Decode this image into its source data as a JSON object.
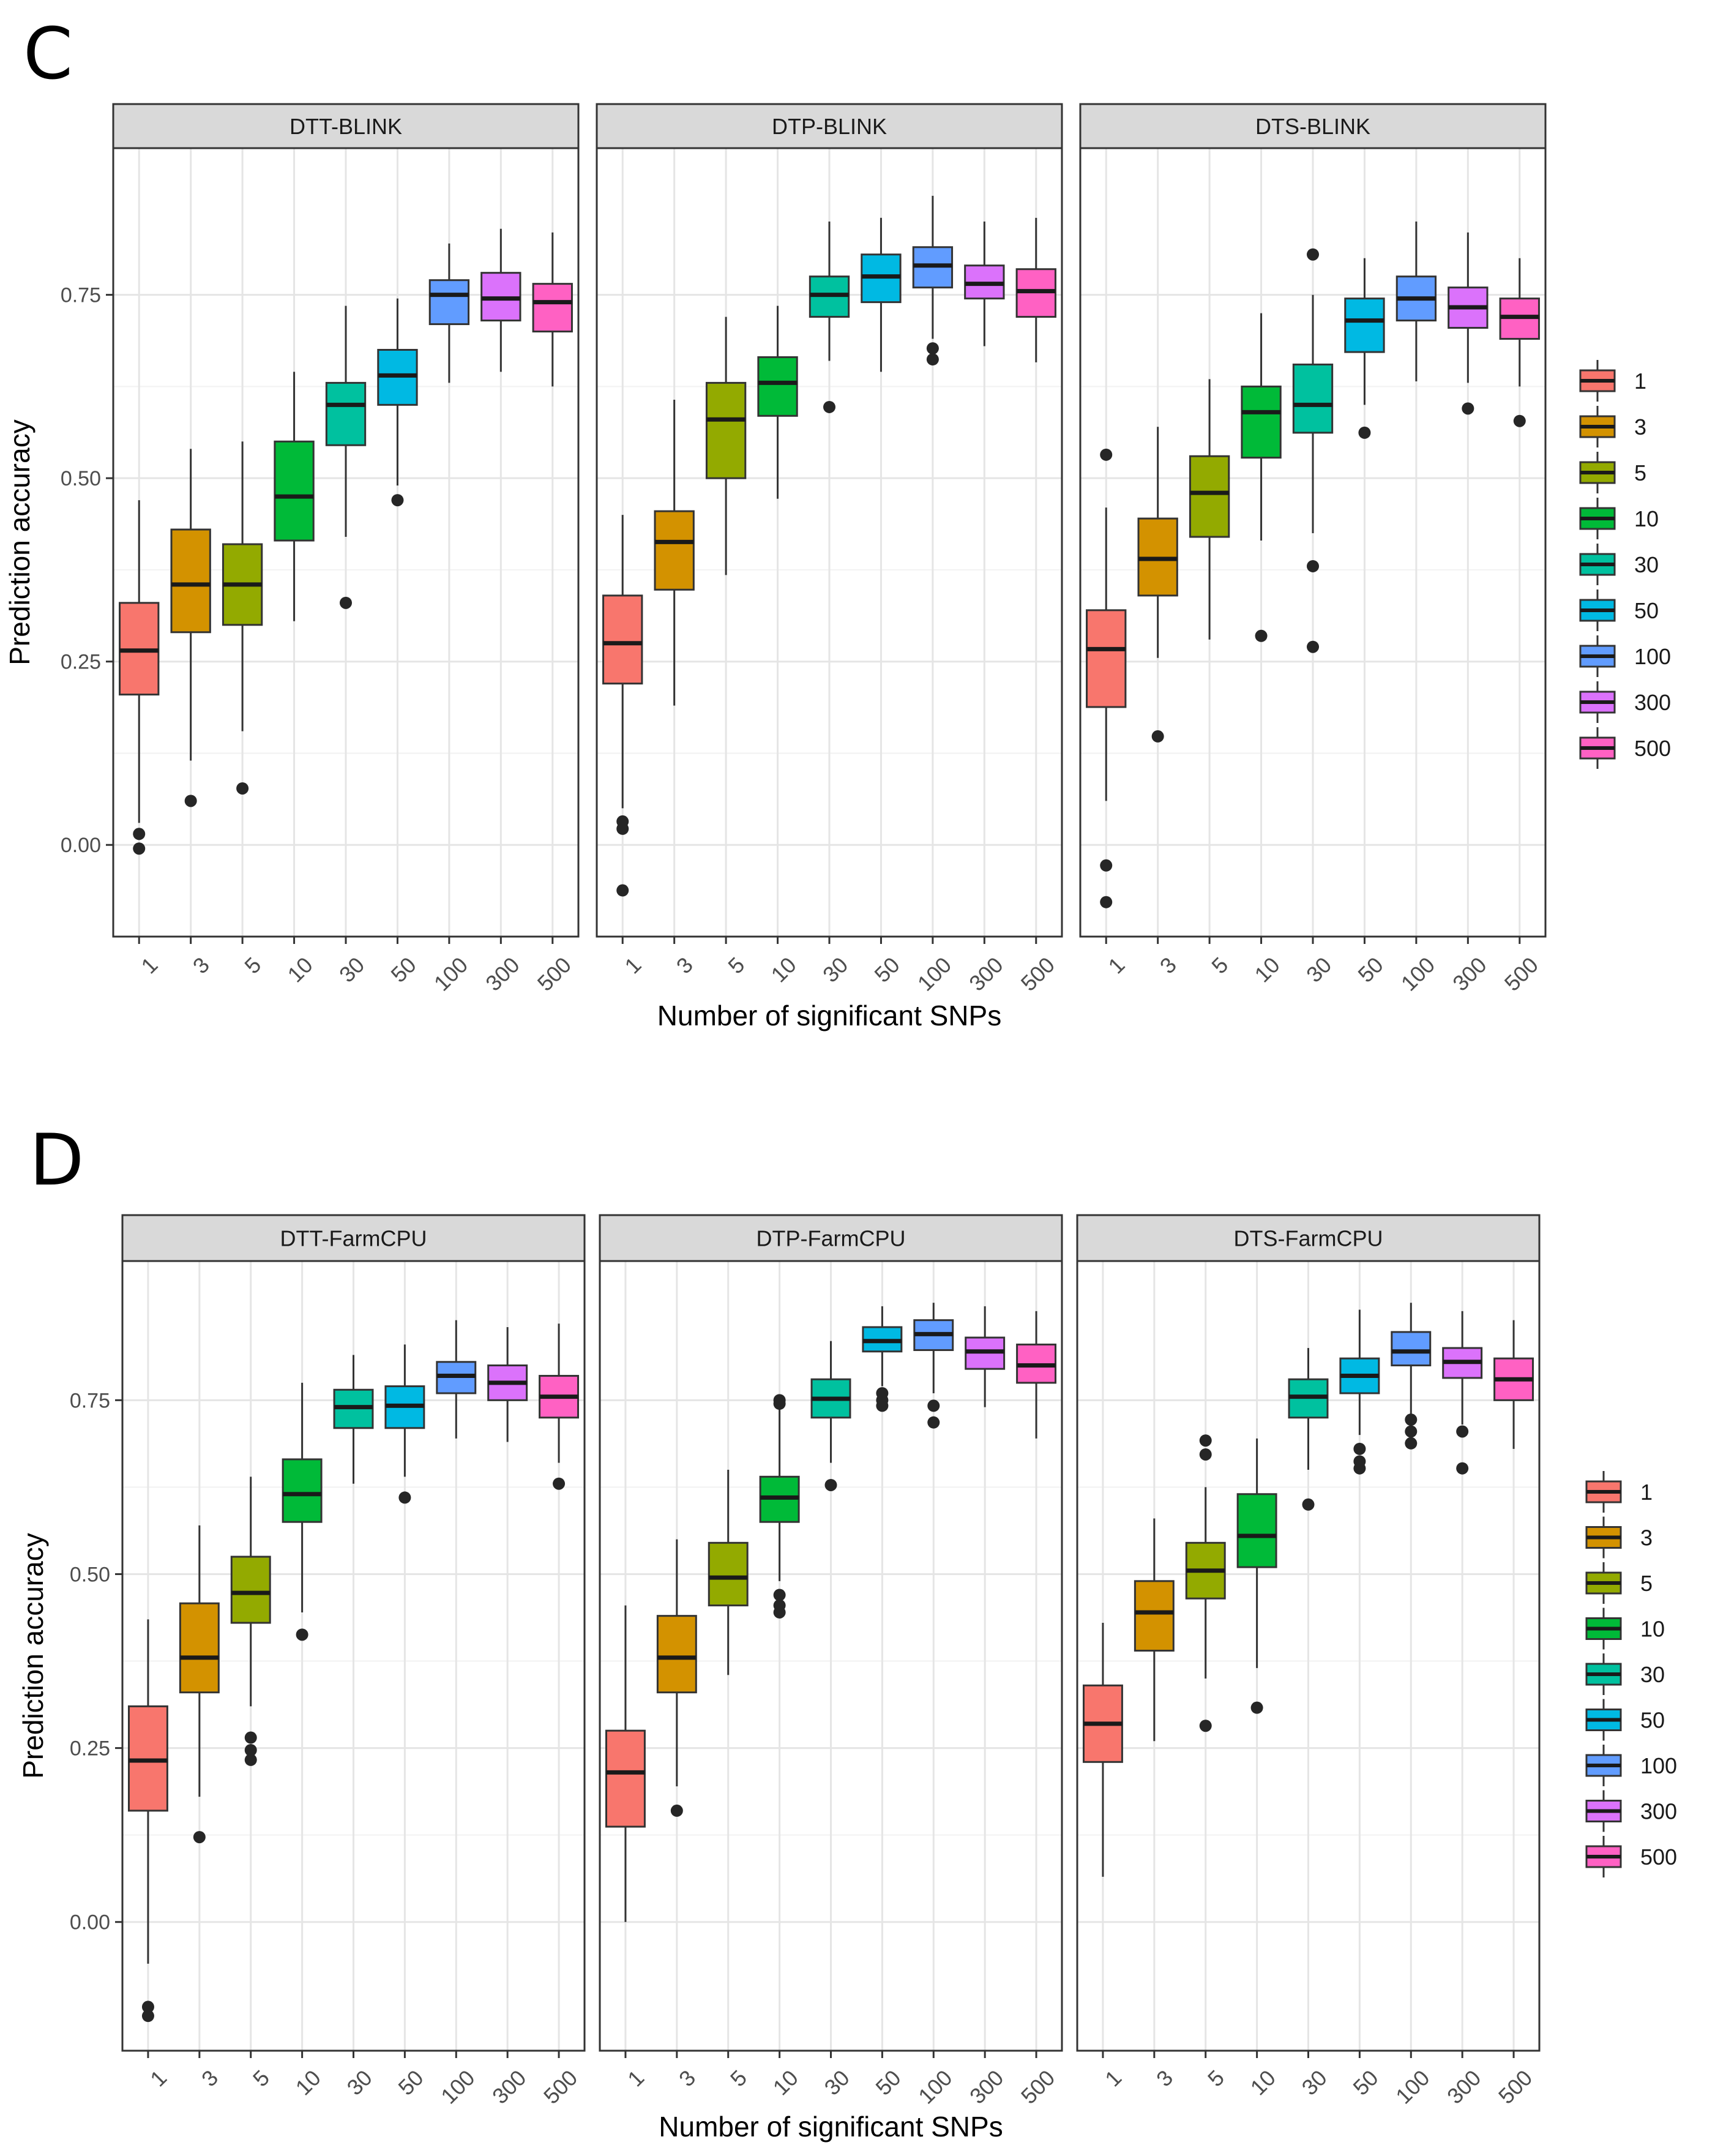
{
  "series_colors": [
    "#F8766D",
    "#D39200",
    "#93AA00",
    "#00BA38",
    "#00C19F",
    "#00B9E3",
    "#619CFF",
    "#DB72FB",
    "#FF61C3"
  ],
  "chart_data": [
    {
      "panel_label": "C",
      "type": "boxplot",
      "xlabel": "Number of significant SNPs",
      "ylabel": "Prediction accuracy",
      "ylim": [
        -0.125,
        0.95
      ],
      "yticks": [
        0.0,
        0.25,
        0.5,
        0.75
      ],
      "ytick_labels": [
        "0.00",
        "0.25",
        "0.50",
        "0.75"
      ],
      "categories": [
        "1",
        "3",
        "5",
        "10",
        "30",
        "50",
        "100",
        "300",
        "500"
      ],
      "legend": {
        "position": "right",
        "entries": [
          "1",
          "3",
          "5",
          "10",
          "30",
          "50",
          "100",
          "300",
          "500"
        ]
      },
      "facets": [
        {
          "title": "DTT-BLINK",
          "boxes": [
            {
              "wlo": 0.03,
              "q1": 0.205,
              "med": 0.265,
              "q3": 0.33,
              "whi": 0.47,
              "out": [
                0.015,
                -0.005
              ]
            },
            {
              "wlo": 0.115,
              "q1": 0.29,
              "med": 0.355,
              "q3": 0.43,
              "whi": 0.54,
              "out": [
                0.06
              ]
            },
            {
              "wlo": 0.155,
              "q1": 0.3,
              "med": 0.355,
              "q3": 0.41,
              "whi": 0.55,
              "out": [
                0.077
              ]
            },
            {
              "wlo": 0.305,
              "q1": 0.415,
              "med": 0.475,
              "q3": 0.55,
              "whi": 0.645,
              "out": []
            },
            {
              "wlo": 0.42,
              "q1": 0.545,
              "med": 0.6,
              "q3": 0.63,
              "whi": 0.735,
              "out": [
                0.33
              ]
            },
            {
              "wlo": 0.49,
              "q1": 0.6,
              "med": 0.64,
              "q3": 0.675,
              "whi": 0.745,
              "out": [
                0.47
              ]
            },
            {
              "wlo": 0.63,
              "q1": 0.71,
              "med": 0.75,
              "q3": 0.77,
              "whi": 0.82,
              "out": []
            },
            {
              "wlo": 0.645,
              "q1": 0.715,
              "med": 0.745,
              "q3": 0.78,
              "whi": 0.84,
              "out": []
            },
            {
              "wlo": 0.625,
              "q1": 0.7,
              "med": 0.74,
              "q3": 0.765,
              "whi": 0.835,
              "out": []
            }
          ]
        },
        {
          "title": "DTP-BLINK",
          "boxes": [
            {
              "wlo": 0.05,
              "q1": 0.22,
              "med": 0.275,
              "q3": 0.34,
              "whi": 0.45,
              "out": [
                0.032,
                0.022,
                -0.062
              ]
            },
            {
              "wlo": 0.19,
              "q1": 0.348,
              "med": 0.413,
              "q3": 0.455,
              "whi": 0.607,
              "out": []
            },
            {
              "wlo": 0.368,
              "q1": 0.5,
              "med": 0.58,
              "q3": 0.63,
              "whi": 0.72,
              "out": []
            },
            {
              "wlo": 0.472,
              "q1": 0.585,
              "med": 0.63,
              "q3": 0.665,
              "whi": 0.735,
              "out": []
            },
            {
              "wlo": 0.66,
              "q1": 0.72,
              "med": 0.75,
              "q3": 0.775,
              "whi": 0.85,
              "out": [
                0.597
              ]
            },
            {
              "wlo": 0.645,
              "q1": 0.74,
              "med": 0.775,
              "q3": 0.805,
              "whi": 0.855,
              "out": []
            },
            {
              "wlo": 0.69,
              "q1": 0.76,
              "med": 0.79,
              "q3": 0.815,
              "whi": 0.885,
              "out": [
                0.677,
                0.662
              ]
            },
            {
              "wlo": 0.68,
              "q1": 0.745,
              "med": 0.765,
              "q3": 0.79,
              "whi": 0.85,
              "out": []
            },
            {
              "wlo": 0.658,
              "q1": 0.72,
              "med": 0.755,
              "q3": 0.785,
              "whi": 0.855,
              "out": []
            }
          ]
        },
        {
          "title": "DTS-BLINK",
          "boxes": [
            {
              "wlo": 0.06,
              "q1": 0.188,
              "med": 0.267,
              "q3": 0.32,
              "whi": 0.46,
              "out": [
                0.532,
                -0.028,
                -0.078
              ]
            },
            {
              "wlo": 0.255,
              "q1": 0.34,
              "med": 0.39,
              "q3": 0.445,
              "whi": 0.57,
              "out": [
                0.148
              ]
            },
            {
              "wlo": 0.28,
              "q1": 0.42,
              "med": 0.48,
              "q3": 0.53,
              "whi": 0.635,
              "out": []
            },
            {
              "wlo": 0.415,
              "q1": 0.528,
              "med": 0.59,
              "q3": 0.625,
              "whi": 0.725,
              "out": [
                0.285
              ]
            },
            {
              "wlo": 0.425,
              "q1": 0.562,
              "med": 0.6,
              "q3": 0.655,
              "whi": 0.75,
              "out": [
                0.805,
                0.38,
                0.27
              ]
            },
            {
              "wlo": 0.6,
              "q1": 0.672,
              "med": 0.715,
              "q3": 0.745,
              "whi": 0.8,
              "out": [
                0.562
              ]
            },
            {
              "wlo": 0.632,
              "q1": 0.715,
              "med": 0.745,
              "q3": 0.775,
              "whi": 0.85,
              "out": []
            },
            {
              "wlo": 0.63,
              "q1": 0.705,
              "med": 0.733,
              "q3": 0.76,
              "whi": 0.835,
              "out": [
                0.595
              ]
            },
            {
              "wlo": 0.625,
              "q1": 0.69,
              "med": 0.72,
              "q3": 0.745,
              "whi": 0.8,
              "out": [
                0.578
              ]
            }
          ]
        }
      ]
    },
    {
      "panel_label": "D",
      "type": "boxplot",
      "xlabel": "Number of significant SNPs",
      "ylabel": "Prediction accuracy",
      "ylim": [
        -0.185,
        0.95
      ],
      "yticks": [
        0.0,
        0.25,
        0.5,
        0.75
      ],
      "ytick_labels": [
        "0.00",
        "0.25",
        "0.50",
        "0.75"
      ],
      "categories": [
        "1",
        "3",
        "5",
        "10",
        "30",
        "50",
        "100",
        "300",
        "500"
      ],
      "legend": {
        "position": "right",
        "entries": [
          "1",
          "3",
          "5",
          "10",
          "30",
          "50",
          "100",
          "300",
          "500"
        ]
      },
      "facets": [
        {
          "title": "DTT-FarmCPU",
          "boxes": [
            {
              "wlo": -0.06,
              "q1": 0.16,
              "med": 0.232,
              "q3": 0.31,
              "whi": 0.435,
              "out": [
                -0.122,
                -0.135
              ]
            },
            {
              "wlo": 0.18,
              "q1": 0.33,
              "med": 0.38,
              "q3": 0.458,
              "whi": 0.57,
              "out": [
                0.122
              ]
            },
            {
              "wlo": 0.31,
              "q1": 0.43,
              "med": 0.473,
              "q3": 0.525,
              "whi": 0.64,
              "out": [
                0.265,
                0.247,
                0.233
              ]
            },
            {
              "wlo": 0.445,
              "q1": 0.575,
              "med": 0.615,
              "q3": 0.665,
              "whi": 0.775,
              "out": [
                0.413
              ]
            },
            {
              "wlo": 0.63,
              "q1": 0.71,
              "med": 0.74,
              "q3": 0.765,
              "whi": 0.815,
              "out": []
            },
            {
              "wlo": 0.64,
              "q1": 0.71,
              "med": 0.742,
              "q3": 0.77,
              "whi": 0.83,
              "out": [
                0.61
              ]
            },
            {
              "wlo": 0.695,
              "q1": 0.76,
              "med": 0.785,
              "q3": 0.805,
              "whi": 0.865,
              "out": []
            },
            {
              "wlo": 0.69,
              "q1": 0.75,
              "med": 0.775,
              "q3": 0.8,
              "whi": 0.855,
              "out": []
            },
            {
              "wlo": 0.66,
              "q1": 0.725,
              "med": 0.755,
              "q3": 0.785,
              "whi": 0.86,
              "out": [
                0.63
              ]
            }
          ]
        },
        {
          "title": "DTP-FarmCPU",
          "boxes": [
            {
              "wlo": 0.0,
              "q1": 0.137,
              "med": 0.215,
              "q3": 0.275,
              "whi": 0.455,
              "out": []
            },
            {
              "wlo": 0.195,
              "q1": 0.33,
              "med": 0.38,
              "q3": 0.44,
              "whi": 0.55,
              "out": [
                0.16
              ]
            },
            {
              "wlo": 0.355,
              "q1": 0.455,
              "med": 0.495,
              "q3": 0.545,
              "whi": 0.65,
              "out": []
            },
            {
              "wlo": 0.49,
              "q1": 0.575,
              "med": 0.61,
              "q3": 0.64,
              "whi": 0.74,
              "out": [
                0.75,
                0.745,
                0.47,
                0.455,
                0.445
              ]
            },
            {
              "wlo": 0.66,
              "q1": 0.725,
              "med": 0.752,
              "q3": 0.78,
              "whi": 0.835,
              "out": [
                0.628
              ]
            },
            {
              "wlo": 0.77,
              "q1": 0.82,
              "med": 0.835,
              "q3": 0.855,
              "whi": 0.885,
              "out": [
                0.76,
                0.75,
                0.742
              ]
            },
            {
              "wlo": 0.76,
              "q1": 0.822,
              "med": 0.845,
              "q3": 0.865,
              "whi": 0.89,
              "out": [
                0.742,
                0.718
              ]
            },
            {
              "wlo": 0.74,
              "q1": 0.795,
              "med": 0.82,
              "q3": 0.84,
              "whi": 0.885,
              "out": []
            },
            {
              "wlo": 0.695,
              "q1": 0.775,
              "med": 0.8,
              "q3": 0.83,
              "whi": 0.878,
              "out": []
            }
          ]
        },
        {
          "title": "DTS-FarmCPU",
          "boxes": [
            {
              "wlo": 0.065,
              "q1": 0.23,
              "med": 0.285,
              "q3": 0.34,
              "whi": 0.43,
              "out": []
            },
            {
              "wlo": 0.26,
              "q1": 0.39,
              "med": 0.445,
              "q3": 0.49,
              "whi": 0.58,
              "out": []
            },
            {
              "wlo": 0.35,
              "q1": 0.465,
              "med": 0.505,
              "q3": 0.545,
              "whi": 0.625,
              "out": [
                0.692,
                0.672,
                0.282
              ]
            },
            {
              "wlo": 0.365,
              "q1": 0.51,
              "med": 0.555,
              "q3": 0.615,
              "whi": 0.695,
              "out": [
                0.308
              ]
            },
            {
              "wlo": 0.65,
              "q1": 0.725,
              "med": 0.755,
              "q3": 0.78,
              "whi": 0.825,
              "out": [
                0.6
              ]
            },
            {
              "wlo": 0.7,
              "q1": 0.76,
              "med": 0.785,
              "q3": 0.81,
              "whi": 0.88,
              "out": [
                0.68,
                0.662,
                0.652
              ]
            },
            {
              "wlo": 0.73,
              "q1": 0.8,
              "med": 0.82,
              "q3": 0.848,
              "whi": 0.89,
              "out": [
                0.722,
                0.705,
                0.688
              ]
            },
            {
              "wlo": 0.715,
              "q1": 0.782,
              "med": 0.805,
              "q3": 0.825,
              "whi": 0.878,
              "out": [
                0.705,
                0.652
              ]
            },
            {
              "wlo": 0.68,
              "q1": 0.75,
              "med": 0.78,
              "q3": 0.81,
              "whi": 0.865,
              "out": []
            }
          ]
        }
      ]
    }
  ]
}
